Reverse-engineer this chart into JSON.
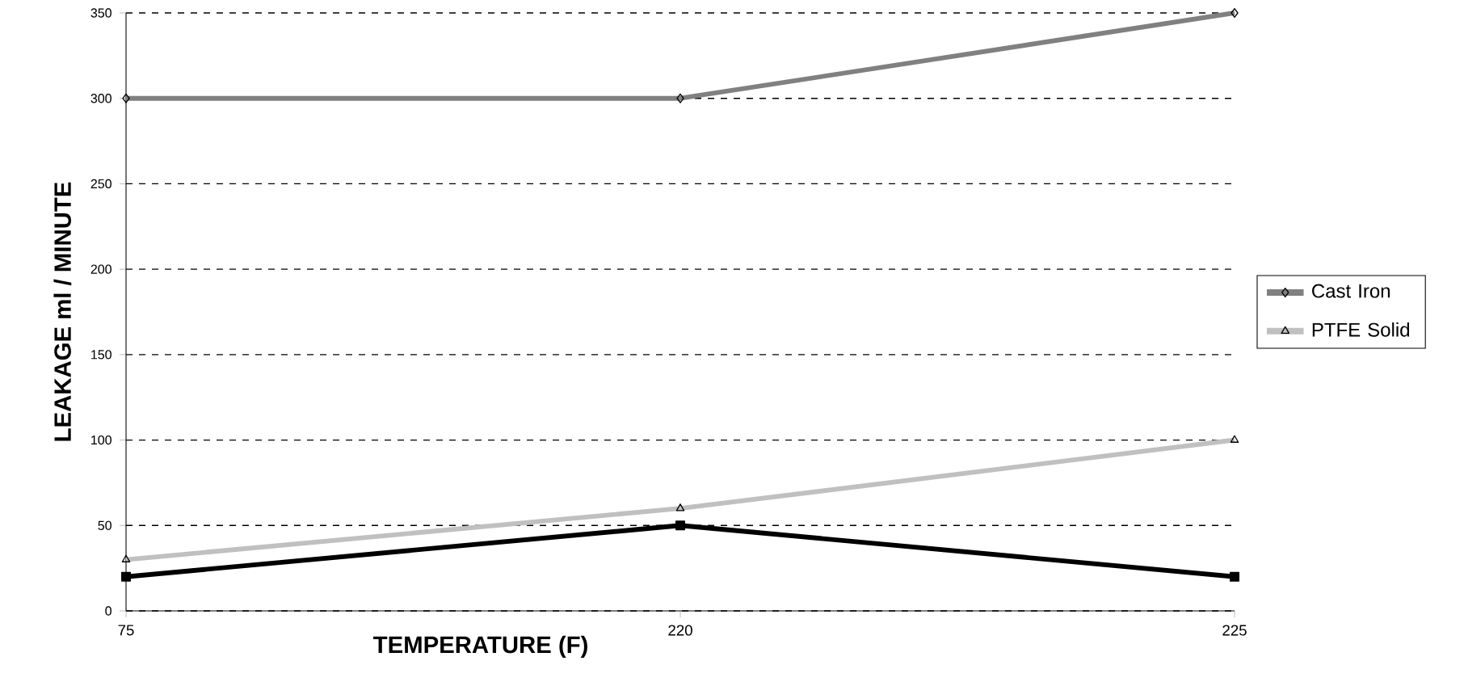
{
  "chart_data": {
    "type": "line",
    "xlabel": "TEMPERATURE (F)",
    "ylabel": "LEAKAGE ml / MINUTE",
    "categories": [
      "75",
      "220",
      "225"
    ],
    "series": [
      {
        "name": "Cast Iron",
        "color": "#808080",
        "marker": "diamond",
        "values": [
          300,
          300,
          350
        ]
      },
      {
        "color": "#000000",
        "marker": "square",
        "values": [
          20,
          50,
          20
        ]
      },
      {
        "name": "PTFE Solid",
        "color": "#c0c0c0",
        "marker": "triangle",
        "values": [
          30,
          60,
          100
        ]
      }
    ],
    "ylim": [
      0,
      350
    ],
    "yticks": [
      0,
      50,
      100,
      150,
      200,
      250,
      300,
      350
    ],
    "grid": "y",
    "legend": "right",
    "line_style": "solid"
  }
}
